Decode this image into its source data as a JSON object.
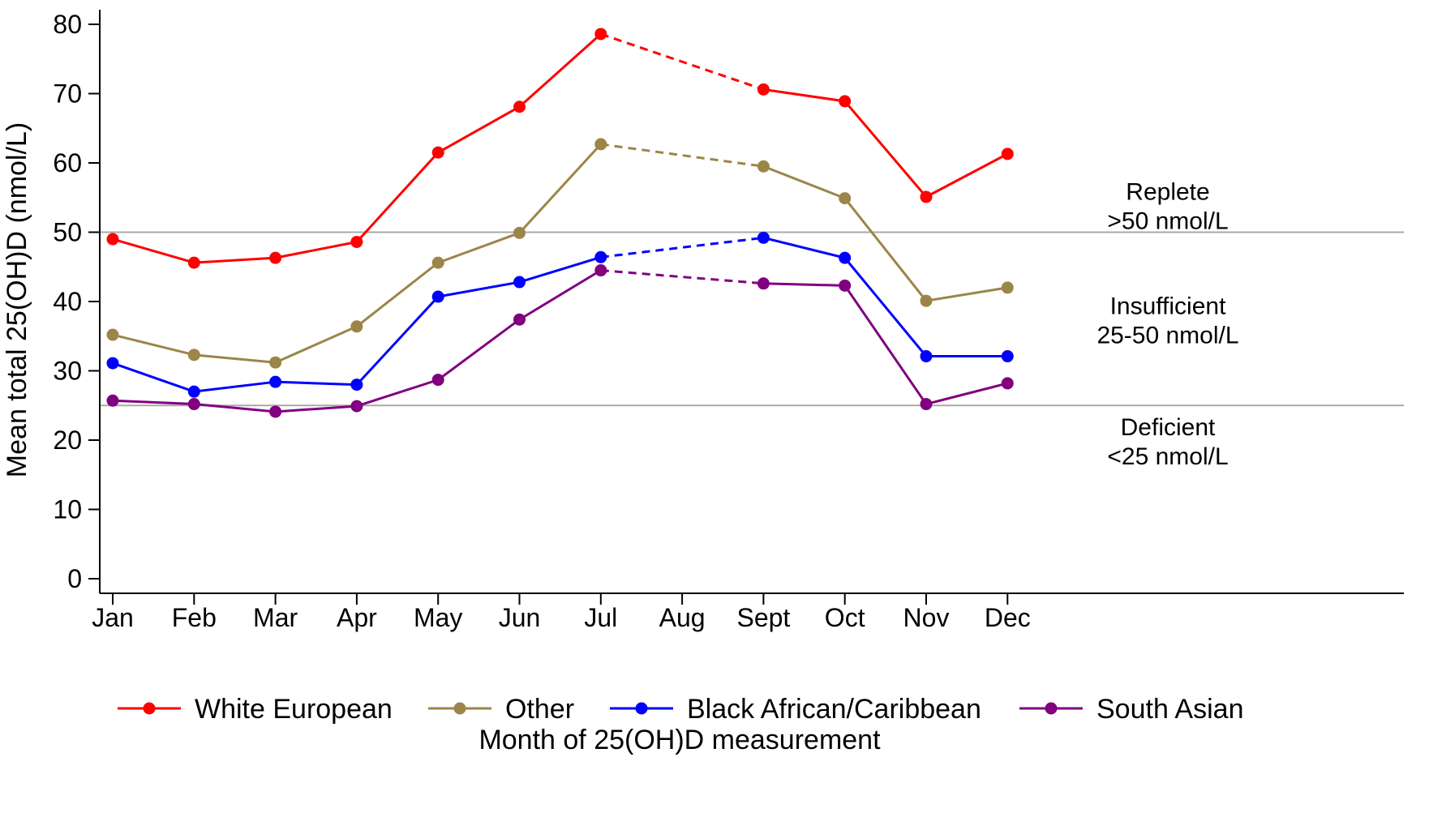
{
  "chart_data": {
    "type": "line",
    "title": "",
    "xlabel": "Month of 25(OH)D measurement",
    "ylabel": "Mean total 25(OH)D (nmol/L)",
    "categories": [
      "Jan",
      "Feb",
      "Mar",
      "Apr",
      "May",
      "Jun",
      "Jul",
      "Aug",
      "Sept",
      "Oct",
      "Nov",
      "Dec"
    ],
    "yticks": [
      "0",
      "10",
      "20",
      "30",
      "40",
      "50",
      "60",
      "70",
      "80"
    ],
    "ylim": [
      0,
      80
    ],
    "grid": false,
    "legend_position": "bottom",
    "dashed_segment_note": "No August measurements; Jul to Sept connected by dashed line",
    "reference_lines": [
      {
        "value": 50,
        "color": "#a9a9a9"
      },
      {
        "value": 25,
        "color": "#a9a9a9"
      }
    ],
    "zones": [
      {
        "name": "Replete",
        "range": ">50 nmol/L",
        "y_anchor": 54
      },
      {
        "name": "Insufficient",
        "range": "25-50 nmol/L",
        "y_anchor": 37.5
      },
      {
        "name": "Deficient",
        "range": "<25 nmol/L",
        "y_anchor": 20
      }
    ],
    "series": [
      {
        "name": "White European",
        "color": "#ff0000",
        "values": [
          49.0,
          45.6,
          46.3,
          48.6,
          61.5,
          68.1,
          78.6,
          null,
          70.6,
          68.9,
          55.1,
          61.3
        ]
      },
      {
        "name": "Other",
        "color": "#9c8548",
        "values": [
          35.2,
          32.3,
          31.2,
          36.4,
          45.6,
          49.9,
          62.7,
          null,
          59.5,
          54.9,
          40.1,
          42.0
        ]
      },
      {
        "name": "Black African/Caribbean",
        "color": "#0000ff",
        "values": [
          31.1,
          27.0,
          28.4,
          28.0,
          40.7,
          42.8,
          46.4,
          null,
          49.2,
          46.3,
          32.1,
          32.1
        ]
      },
      {
        "name": "South Asian",
        "color": "#800080",
        "values": [
          25.7,
          25.2,
          24.1,
          24.9,
          28.7,
          37.4,
          44.5,
          null,
          42.6,
          42.3,
          25.2,
          28.2
        ]
      }
    ]
  }
}
